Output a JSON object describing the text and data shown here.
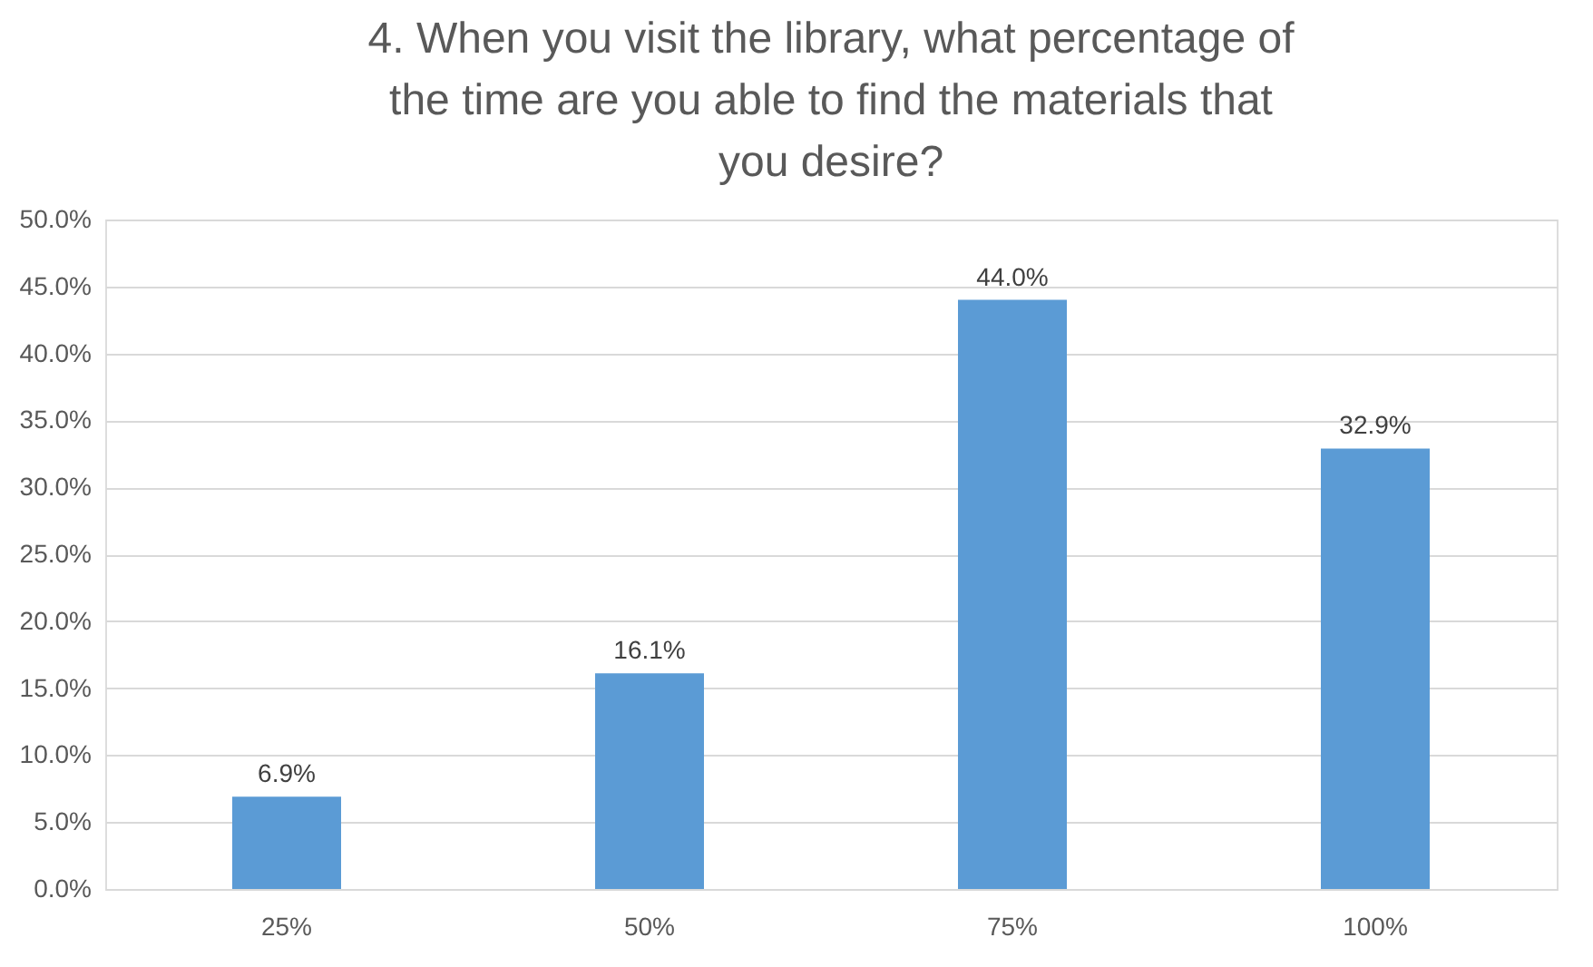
{
  "chart_data": {
    "type": "bar",
    "title": "4. When you visit the library, what percentage of the time are you able to find the materials that you desire?",
    "categories": [
      "25%",
      "50%",
      "75%",
      "100%"
    ],
    "values": [
      6.9,
      16.1,
      44.0,
      32.9
    ],
    "value_labels": [
      "6.9%",
      "16.1%",
      "44.0%",
      "32.9%"
    ],
    "color": "#5b9bd5",
    "ylim": [
      0,
      50
    ],
    "yticks": [
      {
        "value": 0,
        "label": "0.0%"
      },
      {
        "value": 5,
        "label": "5.0%"
      },
      {
        "value": 10,
        "label": "10.0%"
      },
      {
        "value": 15,
        "label": "15.0%"
      },
      {
        "value": 20,
        "label": "20.0%"
      },
      {
        "value": 25,
        "label": "25.0%"
      },
      {
        "value": 30,
        "label": "30.0%"
      },
      {
        "value": 35,
        "label": "35.0%"
      },
      {
        "value": 40,
        "label": "40.0%"
      },
      {
        "value": 45,
        "label": "45.0%"
      },
      {
        "value": 50,
        "label": "50.0%"
      }
    ],
    "grid": "y"
  }
}
